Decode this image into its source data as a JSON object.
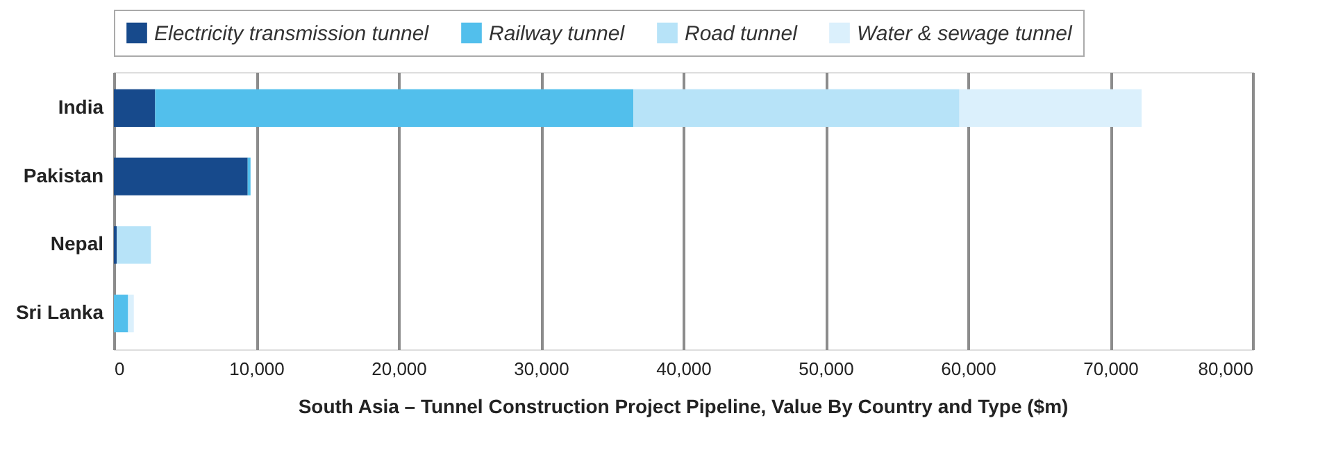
{
  "chart_data": {
    "type": "bar",
    "orientation": "horizontal",
    "stacked": true,
    "title": "South Asia – Tunnel Construction Project Pipeline, Value By Country and Type ($m)",
    "categories": [
      "India",
      "Pakistan",
      "Nepal",
      "Sri Lanka"
    ],
    "series": [
      {
        "name": "Electricity transmission tunnel",
        "color": "#174a8c",
        "values": [
          2900,
          9400,
          200,
          0
        ]
      },
      {
        "name": "Railway tunnel",
        "color": "#52bfec",
        "values": [
          33600,
          200,
          0,
          1000
        ]
      },
      {
        "name": "Road tunnel",
        "color": "#b7e3f8",
        "values": [
          22900,
          0,
          2400,
          0
        ]
      },
      {
        "name": "Water & sewage tunnel",
        "color": "#dbf0fc",
        "values": [
          12800,
          0,
          0,
          400
        ]
      }
    ],
    "xlim": [
      0,
      80000
    ],
    "xticks": [
      0,
      {
        "value": 10000,
        "label": "10,000"
      },
      {
        "value": 20000,
        "label": "20,000"
      },
      {
        "value": 30000,
        "label": "30,000"
      },
      {
        "value": 40000,
        "label": "40,000"
      },
      {
        "value": 50000,
        "label": "50,000"
      },
      {
        "value": 60000,
        "label": "60,000"
      },
      {
        "value": 70000,
        "label": "70,000"
      },
      {
        "value": 80000,
        "label": "80,000"
      }
    ],
    "grid": "x",
    "legend": "top"
  }
}
